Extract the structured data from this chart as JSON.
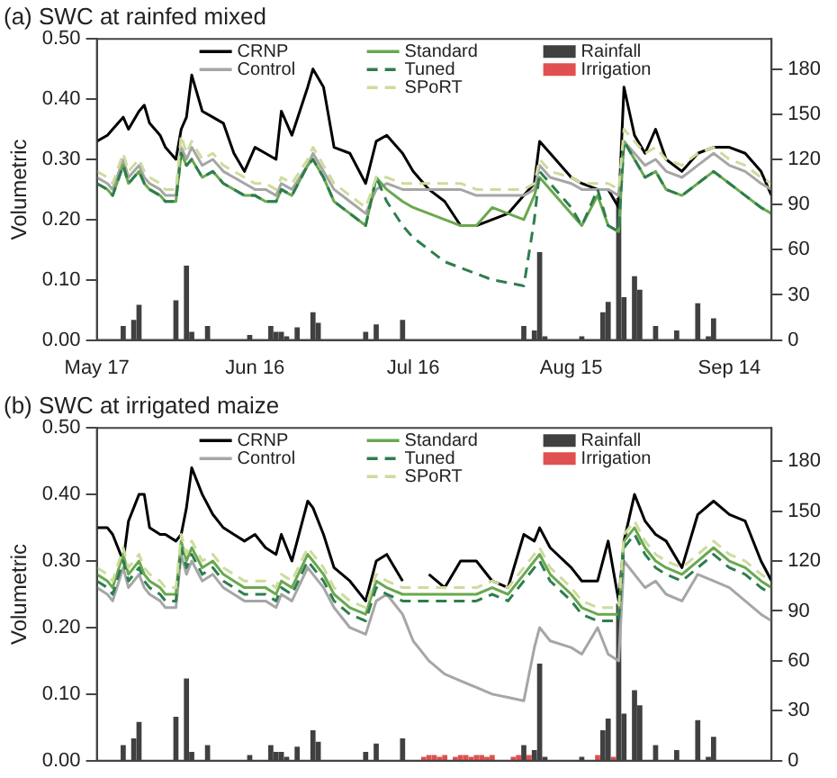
{
  "chart_data": [
    {
      "type": "line",
      "title": "(a) SWC at rainfed mixed",
      "ylabel": "Volumetric",
      "xlim": [
        "--05-17",
        "--09-22"
      ],
      "xticks": [
        {
          "value": "--05-17",
          "label": "May 17"
        },
        {
          "value": "--06-16",
          "label": "Jun 16"
        },
        {
          "value": "--07-16",
          "label": "Jul 16"
        },
        {
          "value": "--08-15",
          "label": "Aug 15"
        },
        {
          "value": "--09-14",
          "label": "Sep 14"
        }
      ],
      "ylim": [
        0,
        0.5
      ],
      "yticks": [
        {
          "value": 0,
          "label": "0.00"
        },
        {
          "value": 0.1,
          "label": "0.10"
        },
        {
          "value": 0.2,
          "label": "0.20"
        },
        {
          "value": 0.3,
          "label": "0.30"
        },
        {
          "value": 0.4,
          "label": "0.40"
        },
        {
          "value": 0.5,
          "label": "0.50"
        }
      ],
      "y2lim": [
        0,
        200
      ],
      "y2ticks": [
        0,
        30,
        60,
        90,
        120,
        150,
        180
      ],
      "grid": false,
      "legend": "top",
      "marker": "none",
      "x": [
        "--05-17",
        "--05-19",
        "--05-20",
        "--05-22",
        "--05-23",
        "--05-25",
        "--05-26",
        "--05-27",
        "--05-29",
        "--05-30",
        "--06-01",
        "--06-02",
        "--06-03",
        "--06-04",
        "--06-06",
        "--06-08",
        "--06-10",
        "--06-12",
        "--06-14",
        "--06-16",
        "--06-18",
        "--06-20",
        "--06-21",
        "--06-23",
        "--06-26",
        "--06-27",
        "--06-29",
        "--07-01",
        "--07-04",
        "--07-07",
        "--07-09",
        "--07-11",
        "--07-14",
        "--07-16",
        "--07-19",
        "--07-22",
        "--07-25",
        "--07-28",
        "--07-31",
        "--08-03",
        "--08-06",
        "--08-08",
        "--08-09",
        "--08-11",
        "--08-15",
        "--08-17",
        "--08-20",
        "--08-22",
        "--08-24",
        "--08-25",
        "--08-27",
        "--08-29",
        "--08-31",
        "--09-02",
        "--09-05",
        "--09-08",
        "--09-11",
        "--09-14",
        "--09-17",
        "--09-20",
        "--09-22"
      ],
      "series": [
        {
          "name": "CRNP",
          "color": "#000000",
          "line_style": "solid",
          "values": [
            0.33,
            0.34,
            0.35,
            0.37,
            0.35,
            0.38,
            0.39,
            0.36,
            0.34,
            0.32,
            0.3,
            0.35,
            0.37,
            0.44,
            0.38,
            0.37,
            0.36,
            0.31,
            0.28,
            0.32,
            0.31,
            0.3,
            0.38,
            0.34,
            0.42,
            0.45,
            0.42,
            0.32,
            0.31,
            0.26,
            0.33,
            0.34,
            0.31,
            0.28,
            0.25,
            0.23,
            0.19,
            0.19,
            0.2,
            0.21,
            0.24,
            0.26,
            0.33,
            0.31,
            0.27,
            0.26,
            0.25,
            0.25,
            0.22,
            0.42,
            0.34,
            0.31,
            0.35,
            0.3,
            0.28,
            0.31,
            0.32,
            0.32,
            0.31,
            0.28,
            0.24
          ]
        },
        {
          "name": "Control",
          "type": "line",
          "color": "#a6a6a6",
          "line_style": "solid",
          "values": [
            0.27,
            0.26,
            0.25,
            0.3,
            0.27,
            0.29,
            0.27,
            0.26,
            0.25,
            0.24,
            0.24,
            0.32,
            0.3,
            0.32,
            0.29,
            0.3,
            0.28,
            0.27,
            0.26,
            0.25,
            0.25,
            0.24,
            0.26,
            0.25,
            0.29,
            0.31,
            0.28,
            0.25,
            0.23,
            0.21,
            0.25,
            0.26,
            0.25,
            0.25,
            0.25,
            0.25,
            0.25,
            0.24,
            0.24,
            0.24,
            0.24,
            0.25,
            0.29,
            0.27,
            0.26,
            0.25,
            0.25,
            0.25,
            0.24,
            0.33,
            0.31,
            0.29,
            0.3,
            0.28,
            0.27,
            0.29,
            0.31,
            0.29,
            0.28,
            0.26,
            0.25
          ]
        },
        {
          "name": "Standard",
          "type": "line",
          "color": "#6aa84f",
          "line_style": "solid",
          "values": [
            0.26,
            0.25,
            0.24,
            0.29,
            0.26,
            0.28,
            0.26,
            0.25,
            0.24,
            0.23,
            0.23,
            0.31,
            0.29,
            0.3,
            0.27,
            0.28,
            0.26,
            0.25,
            0.24,
            0.24,
            0.23,
            0.23,
            0.25,
            0.24,
            0.29,
            0.3,
            0.27,
            0.23,
            0.21,
            0.19,
            0.27,
            0.25,
            0.23,
            0.22,
            0.21,
            0.2,
            0.19,
            0.19,
            0.22,
            0.21,
            0.2,
            0.24,
            0.27,
            0.25,
            0.21,
            0.19,
            0.24,
            0.19,
            0.18,
            0.33,
            0.3,
            0.27,
            0.28,
            0.25,
            0.24,
            0.26,
            0.28,
            0.26,
            0.24,
            0.22,
            0.21
          ]
        },
        {
          "name": "Tuned",
          "type": "line",
          "color": "#2e7d4f",
          "line_style": "dashed",
          "values": [
            0.26,
            0.25,
            0.24,
            0.29,
            0.26,
            0.28,
            0.26,
            0.25,
            0.24,
            0.23,
            0.23,
            0.31,
            0.29,
            0.3,
            0.27,
            0.28,
            0.26,
            0.25,
            0.24,
            0.24,
            0.23,
            0.23,
            0.25,
            0.24,
            0.29,
            0.3,
            0.27,
            0.23,
            0.21,
            0.19,
            0.27,
            0.23,
            0.19,
            0.17,
            0.15,
            0.13,
            0.12,
            0.11,
            0.1,
            0.095,
            0.09,
            0.2,
            0.28,
            0.26,
            0.22,
            0.19,
            0.25,
            0.19,
            0.18,
            0.33,
            0.3,
            0.27,
            0.28,
            0.25,
            0.24,
            0.26,
            0.28,
            0.26,
            0.24,
            0.22,
            0.21
          ]
        },
        {
          "name": "SPoRT",
          "type": "line",
          "color": "#cddc9c",
          "line_style": "dashed",
          "values": [
            0.28,
            0.27,
            0.26,
            0.31,
            0.28,
            0.3,
            0.28,
            0.27,
            0.26,
            0.25,
            0.25,
            0.34,
            0.31,
            0.33,
            0.3,
            0.31,
            0.29,
            0.28,
            0.27,
            0.26,
            0.26,
            0.25,
            0.27,
            0.26,
            0.3,
            0.32,
            0.29,
            0.26,
            0.24,
            0.22,
            0.27,
            0.27,
            0.26,
            0.26,
            0.26,
            0.26,
            0.26,
            0.25,
            0.25,
            0.25,
            0.25,
            0.26,
            0.3,
            0.28,
            0.27,
            0.26,
            0.26,
            0.26,
            0.25,
            0.35,
            0.33,
            0.31,
            0.32,
            0.3,
            0.29,
            0.31,
            0.32,
            0.3,
            0.29,
            0.27,
            0.26
          ]
        },
        {
          "name": "Rainfall",
          "type": "bar",
          "axis": "y2",
          "color": "#404040",
          "x": [
            "--05-22",
            "--05-24",
            "--05-25",
            "--06-01",
            "--06-03",
            "--06-04",
            "--06-07",
            "--06-15",
            "--06-19",
            "--06-20",
            "--06-21",
            "--06-22",
            "--06-24",
            "--06-27",
            "--06-28",
            "--07-07",
            "--07-09",
            "--07-14",
            "--08-06",
            "--08-08",
            "--08-09",
            "--08-10",
            "--08-17",
            "--08-21",
            "--08-22",
            "--08-24",
            "--08-25",
            "--08-27",
            "--08-28",
            "--08-31",
            "--09-04",
            "--09-08",
            "--09-10",
            "--09-11"
          ],
          "values": [
            9,
            13,
            23,
            26,
            49,
            5,
            9,
            3,
            9,
            5,
            5,
            2,
            8,
            18,
            11,
            5,
            10,
            13,
            9,
            6,
            58,
            2,
            2,
            18,
            25,
            94,
            28,
            42,
            33,
            9,
            6,
            24,
            2,
            14
          ]
        },
        {
          "name": "Irrigation",
          "type": "bar",
          "axis": "y2",
          "color": "#e05050",
          "values": [
            null,
            null,
            null,
            null,
            null,
            null,
            null,
            null,
            null,
            null,
            null,
            null,
            null,
            null,
            null,
            null,
            null,
            null,
            null,
            null,
            null,
            null,
            null,
            null,
            null,
            null,
            null,
            null,
            null,
            null,
            null,
            null,
            null,
            null,
            null,
            null,
            null,
            null,
            null,
            null,
            null,
            null,
            null,
            null,
            null,
            null,
            null,
            null,
            null,
            null,
            null,
            null,
            null,
            null,
            null,
            null,
            null,
            null,
            null,
            null,
            null
          ]
        }
      ]
    },
    {
      "type": "line",
      "title": "(b) SWC at irrigated maize",
      "ylabel": "Volumetric",
      "xlim": [
        "--05-17",
        "--09-22"
      ],
      "xticks": [
        {
          "value": "--05-17",
          "label": null
        },
        {
          "value": "--06-16",
          "label": null
        },
        {
          "value": "--07-16",
          "label": null
        },
        {
          "value": "--08-15",
          "label": null
        },
        {
          "value": "--09-14",
          "label": null
        }
      ],
      "tick_labels": "y",
      "ylim": [
        0,
        0.5
      ],
      "yticks": [
        {
          "value": 0,
          "label": "0.00"
        },
        {
          "value": 0.1,
          "label": "0.10"
        },
        {
          "value": 0.2,
          "label": "0.20"
        },
        {
          "value": 0.3,
          "label": "0.30"
        },
        {
          "value": 0.4,
          "label": "0.40"
        },
        {
          "value": 0.5,
          "label": "0.50"
        }
      ],
      "y2lim": [
        0,
        200
      ],
      "y2ticks": [
        0,
        30,
        60,
        90,
        120,
        150,
        180
      ],
      "grid": false,
      "legend": "top",
      "marker": "none",
      "x": [
        "--05-17",
        "--05-19",
        "--05-20",
        "--05-22",
        "--05-23",
        "--05-25",
        "--05-26",
        "--05-27",
        "--05-29",
        "--05-30",
        "--06-01",
        "--06-02",
        "--06-03",
        "--06-04",
        "--06-06",
        "--06-08",
        "--06-10",
        "--06-12",
        "--06-14",
        "--06-16",
        "--06-18",
        "--06-20",
        "--06-21",
        "--06-23",
        "--06-26",
        "--06-27",
        "--06-29",
        "--07-01",
        "--07-04",
        "--07-07",
        "--07-09",
        "--07-11",
        "--07-14",
        "--07-16",
        "--07-19",
        "--07-22",
        "--07-25",
        "--07-28",
        "--07-31",
        "--08-03",
        "--08-06",
        "--08-08",
        "--08-09",
        "--08-11",
        "--08-15",
        "--08-17",
        "--08-20",
        "--08-22",
        "--08-24",
        "--08-25",
        "--08-27",
        "--08-29",
        "--08-31",
        "--09-02",
        "--09-05",
        "--09-08",
        "--09-11",
        "--09-14",
        "--09-17",
        "--09-20",
        "--09-22"
      ],
      "series": [
        {
          "name": "CRNP",
          "color": "#000000",
          "line_style": "solid",
          "values": [
            0.35,
            0.35,
            0.34,
            0.3,
            0.36,
            0.4,
            0.4,
            0.35,
            0.34,
            0.34,
            0.33,
            0.34,
            0.38,
            0.44,
            0.4,
            0.37,
            0.35,
            0.34,
            0.33,
            0.34,
            0.32,
            0.31,
            0.34,
            0.3,
            0.39,
            0.38,
            0.34,
            0.29,
            0.27,
            0.24,
            0.3,
            0.31,
            0.27,
            null,
            0.28,
            0.26,
            0.3,
            0.3,
            0.27,
            0.26,
            0.34,
            0.33,
            0.35,
            0.32,
            0.29,
            0.27,
            0.27,
            0.33,
            0.24,
            0.33,
            0.4,
            0.36,
            0.34,
            0.33,
            0.29,
            0.37,
            0.39,
            0.37,
            0.36,
            0.3,
            0.27
          ]
        },
        {
          "name": "Control",
          "type": "line",
          "color": "#a6a6a6",
          "line_style": "solid",
          "values": [
            0.26,
            0.25,
            0.24,
            0.29,
            0.26,
            0.28,
            0.26,
            0.25,
            0.24,
            0.23,
            0.23,
            0.31,
            0.28,
            0.3,
            0.27,
            0.28,
            0.26,
            0.25,
            0.24,
            0.24,
            0.24,
            0.23,
            0.25,
            0.24,
            0.29,
            0.28,
            0.26,
            0.23,
            0.2,
            0.19,
            0.24,
            0.25,
            0.22,
            0.18,
            0.15,
            0.13,
            0.12,
            0.11,
            0.1,
            0.095,
            0.09,
            0.17,
            0.2,
            0.18,
            0.17,
            0.16,
            0.2,
            0.16,
            0.15,
            0.3,
            0.28,
            0.26,
            0.27,
            0.25,
            0.24,
            0.28,
            0.27,
            0.26,
            0.24,
            0.22,
            0.21
          ]
        },
        {
          "name": "Standard",
          "type": "line",
          "color": "#6aa84f",
          "line_style": "solid",
          "values": [
            0.28,
            0.27,
            0.26,
            0.31,
            0.28,
            0.3,
            0.28,
            0.27,
            0.26,
            0.25,
            0.25,
            0.33,
            0.3,
            0.32,
            0.29,
            0.3,
            0.28,
            0.27,
            0.26,
            0.26,
            0.26,
            0.25,
            0.27,
            0.26,
            0.31,
            0.3,
            0.28,
            0.25,
            0.23,
            0.22,
            0.27,
            0.26,
            0.25,
            0.25,
            0.25,
            0.25,
            0.25,
            0.25,
            0.26,
            0.25,
            0.28,
            0.3,
            0.31,
            0.28,
            0.25,
            0.23,
            0.22,
            0.22,
            0.22,
            0.33,
            0.35,
            0.32,
            0.3,
            0.29,
            0.28,
            0.3,
            0.32,
            0.3,
            0.29,
            0.27,
            0.26
          ]
        },
        {
          "name": "Tuned",
          "type": "line",
          "color": "#2e7d4f",
          "line_style": "dashed",
          "values": [
            0.27,
            0.26,
            0.25,
            0.3,
            0.27,
            0.29,
            0.27,
            0.26,
            0.25,
            0.24,
            0.24,
            0.32,
            0.29,
            0.31,
            0.28,
            0.29,
            0.27,
            0.26,
            0.25,
            0.25,
            0.25,
            0.24,
            0.26,
            0.25,
            0.3,
            0.29,
            0.27,
            0.24,
            0.22,
            0.21,
            0.26,
            0.25,
            0.24,
            0.24,
            0.24,
            0.24,
            0.24,
            0.24,
            0.25,
            0.24,
            0.27,
            0.29,
            0.3,
            0.27,
            0.24,
            0.22,
            0.21,
            0.21,
            0.21,
            0.32,
            0.34,
            0.31,
            0.29,
            0.28,
            0.27,
            0.29,
            0.31,
            0.29,
            0.28,
            0.26,
            0.25
          ]
        },
        {
          "name": "SPoRT",
          "type": "line",
          "color": "#cddc9c",
          "line_style": "dashed",
          "values": [
            0.29,
            0.28,
            0.27,
            0.32,
            0.29,
            0.31,
            0.29,
            0.28,
            0.27,
            0.26,
            0.26,
            0.34,
            0.31,
            0.33,
            0.3,
            0.31,
            0.29,
            0.28,
            0.27,
            0.27,
            0.27,
            0.26,
            0.28,
            0.27,
            0.32,
            0.31,
            0.29,
            0.26,
            0.24,
            0.23,
            0.28,
            0.27,
            0.26,
            0.26,
            0.26,
            0.26,
            0.26,
            0.26,
            0.27,
            0.26,
            0.29,
            0.31,
            0.32,
            0.29,
            0.26,
            0.24,
            0.23,
            0.23,
            0.23,
            0.34,
            0.36,
            0.33,
            0.31,
            0.3,
            0.29,
            0.31,
            0.33,
            0.31,
            0.3,
            0.28,
            0.27
          ]
        },
        {
          "name": "Rainfall",
          "type": "bar",
          "axis": "y2",
          "color": "#404040",
          "x": [
            "--05-22",
            "--05-24",
            "--05-25",
            "--06-01",
            "--06-03",
            "--06-04",
            "--06-07",
            "--06-15",
            "--06-19",
            "--06-20",
            "--06-21",
            "--06-22",
            "--06-24",
            "--06-27",
            "--06-28",
            "--07-07",
            "--07-09",
            "--07-14",
            "--08-06",
            "--08-08",
            "--08-09",
            "--08-10",
            "--08-17",
            "--08-21",
            "--08-22",
            "--08-24",
            "--08-25",
            "--08-27",
            "--08-28",
            "--08-31",
            "--09-04",
            "--09-08",
            "--09-10",
            "--09-11"
          ],
          "values": [
            9,
            13,
            23,
            26,
            49,
            5,
            9,
            3,
            9,
            5,
            5,
            2,
            8,
            18,
            11,
            5,
            10,
            13,
            9,
            6,
            58,
            2,
            2,
            18,
            25,
            94,
            28,
            42,
            33,
            9,
            6,
            24,
            2,
            14
          ]
        },
        {
          "name": "Irrigation",
          "type": "bar",
          "axis": "y2",
          "color": "#e05050",
          "x": [
            "--07-18",
            "--07-19",
            "--07-20",
            "--07-21",
            "--07-22",
            "--07-24",
            "--07-25",
            "--07-26",
            "--07-27",
            "--07-28",
            "--07-29",
            "--07-30",
            "--07-31",
            "--08-04",
            "--08-05",
            "--08-07",
            "--08-20",
            "--08-23"
          ],
          "values": [
            2,
            3,
            3,
            2,
            3,
            2,
            3,
            3,
            2,
            3,
            3,
            2,
            3,
            2,
            3,
            3,
            3,
            2
          ]
        }
      ]
    }
  ]
}
